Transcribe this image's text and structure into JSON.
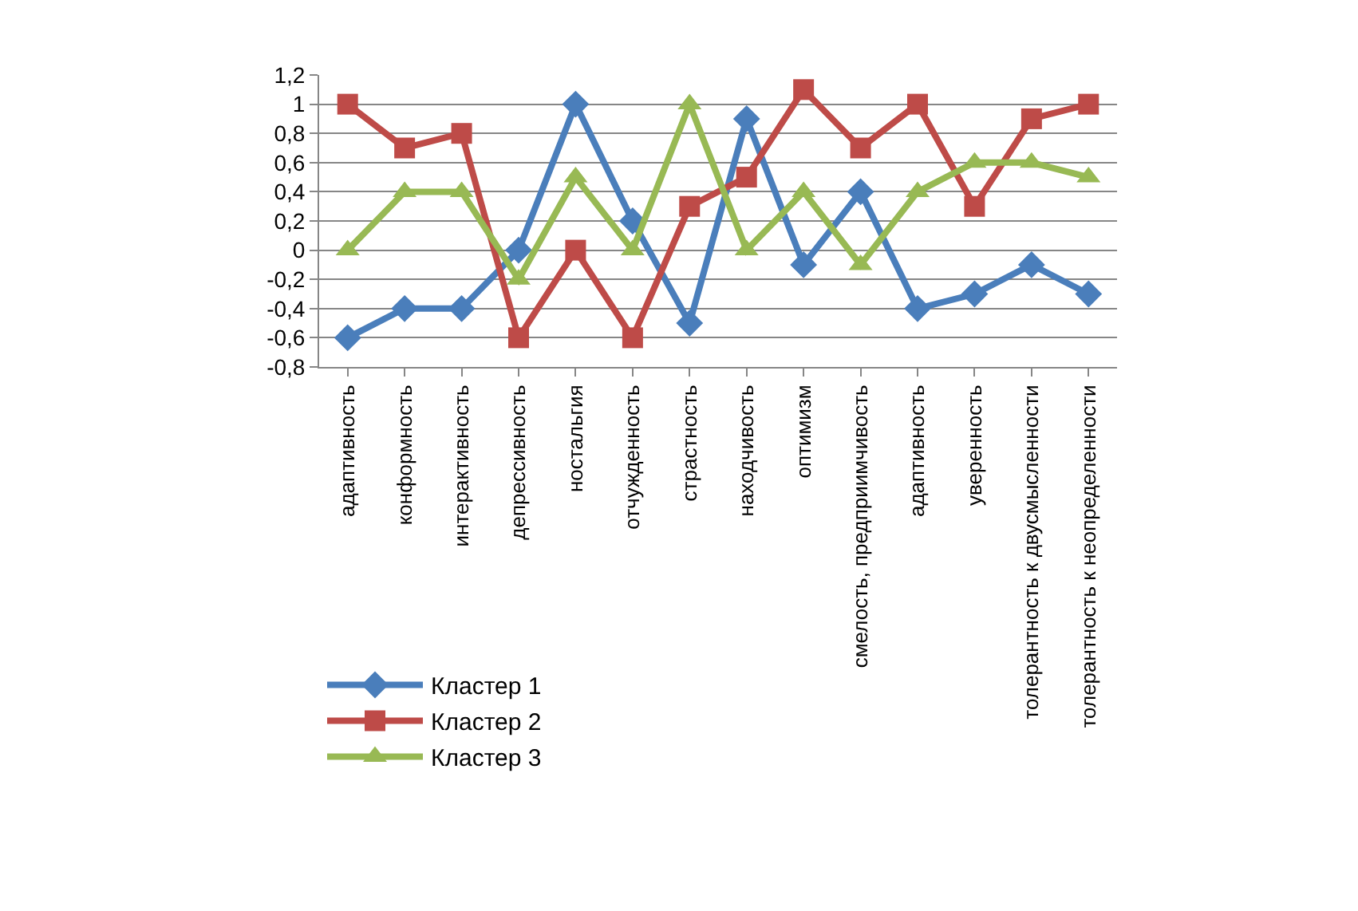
{
  "chart_data": {
    "type": "line",
    "categories": [
      "адаптивность",
      "конформность",
      "интерактивность",
      "депрессивность",
      "ностальгия",
      "отчужденность",
      "страстность",
      "находчивость",
      "оптимизм",
      "смелость, предприимчивость",
      "адаптивность",
      "уверенность",
      "толерантность к двусмысленности",
      "толерантность к неопределенности"
    ],
    "series": [
      {
        "name": "Кластер 1",
        "color": "#4a7ebb",
        "marker": "diamond",
        "values": [
          -0.6,
          -0.4,
          -0.4,
          0,
          1,
          0.2,
          -0.5,
          0.9,
          -0.1,
          0.4,
          -0.4,
          -0.3,
          -0.1,
          -0.3
        ]
      },
      {
        "name": "Кластер 2",
        "color": "#be4b48",
        "marker": "square",
        "values": [
          1,
          0.7,
          0.8,
          -0.6,
          0,
          -0.6,
          0.3,
          0.5,
          1.1,
          0.7,
          1,
          0.3,
          0.9,
          1
        ]
      },
      {
        "name": "Кластер 3",
        "color": "#98b954",
        "marker": "triangle",
        "values": [
          0,
          0.4,
          0.4,
          -0.2,
          0.5,
          0,
          1,
          0,
          0.4,
          -0.1,
          0.4,
          0.6,
          0.6,
          0.5
        ]
      }
    ],
    "ylim": [
      -0.8,
      1.2
    ],
    "yticks": [
      {
        "value": -0.8,
        "label": "-0,8"
      },
      {
        "value": -0.6,
        "label": "-0,6"
      },
      {
        "value": -0.4,
        "label": "-0,4"
      },
      {
        "value": -0.2,
        "label": "-0,2"
      },
      0,
      {
        "value": 0.2,
        "label": "0,2"
      },
      {
        "value": 0.4,
        "label": "0,4"
      },
      {
        "value": 0.6,
        "label": "0,6"
      },
      {
        "value": 0.8,
        "label": "0,8"
      },
      1,
      {
        "value": 1.2,
        "label": "1,2"
      }
    ],
    "grid": "y",
    "legend": "bottom left",
    "line_style": "solid"
  }
}
